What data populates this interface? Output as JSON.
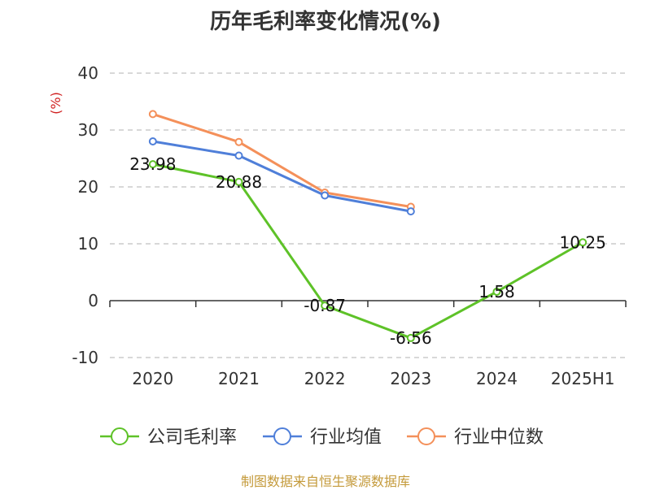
{
  "colors": {
    "company": "#5ec228",
    "industry_avg": "#4f7fd9",
    "industry_median": "#f4905a",
    "grid": "#cccccc",
    "axis": "#333333",
    "unit": "#d02020",
    "source": "#c49a3a"
  },
  "source": "制图数据来自恒生聚源数据库",
  "chart_data": {
    "type": "line",
    "title": "历年毛利率变化情况(%)",
    "ylabel": "(%)",
    "xlabel": "",
    "categories": [
      "2020",
      "2021",
      "2022",
      "2023",
      "2024",
      "2025H1"
    ],
    "ylim": [
      -10,
      40
    ],
    "yticks": [
      -10,
      0,
      10,
      20,
      30,
      40
    ],
    "grid": true,
    "legend_position": "bottom",
    "series": [
      {
        "name": "公司毛利率",
        "values": [
          23.98,
          20.88,
          -0.87,
          -6.56,
          1.58,
          10.25
        ],
        "labels": [
          "23.98",
          "20.88",
          "-0.87",
          "-6.56",
          "1.58",
          "10.25"
        ],
        "color_key": "company"
      },
      {
        "name": "行业均值",
        "values": [
          28.0,
          25.5,
          18.5,
          15.7,
          null,
          null
        ],
        "color_key": "industry_avg"
      },
      {
        "name": "行业中位数",
        "values": [
          32.8,
          27.9,
          19.0,
          16.5,
          null,
          null
        ],
        "color_key": "industry_median"
      }
    ]
  }
}
